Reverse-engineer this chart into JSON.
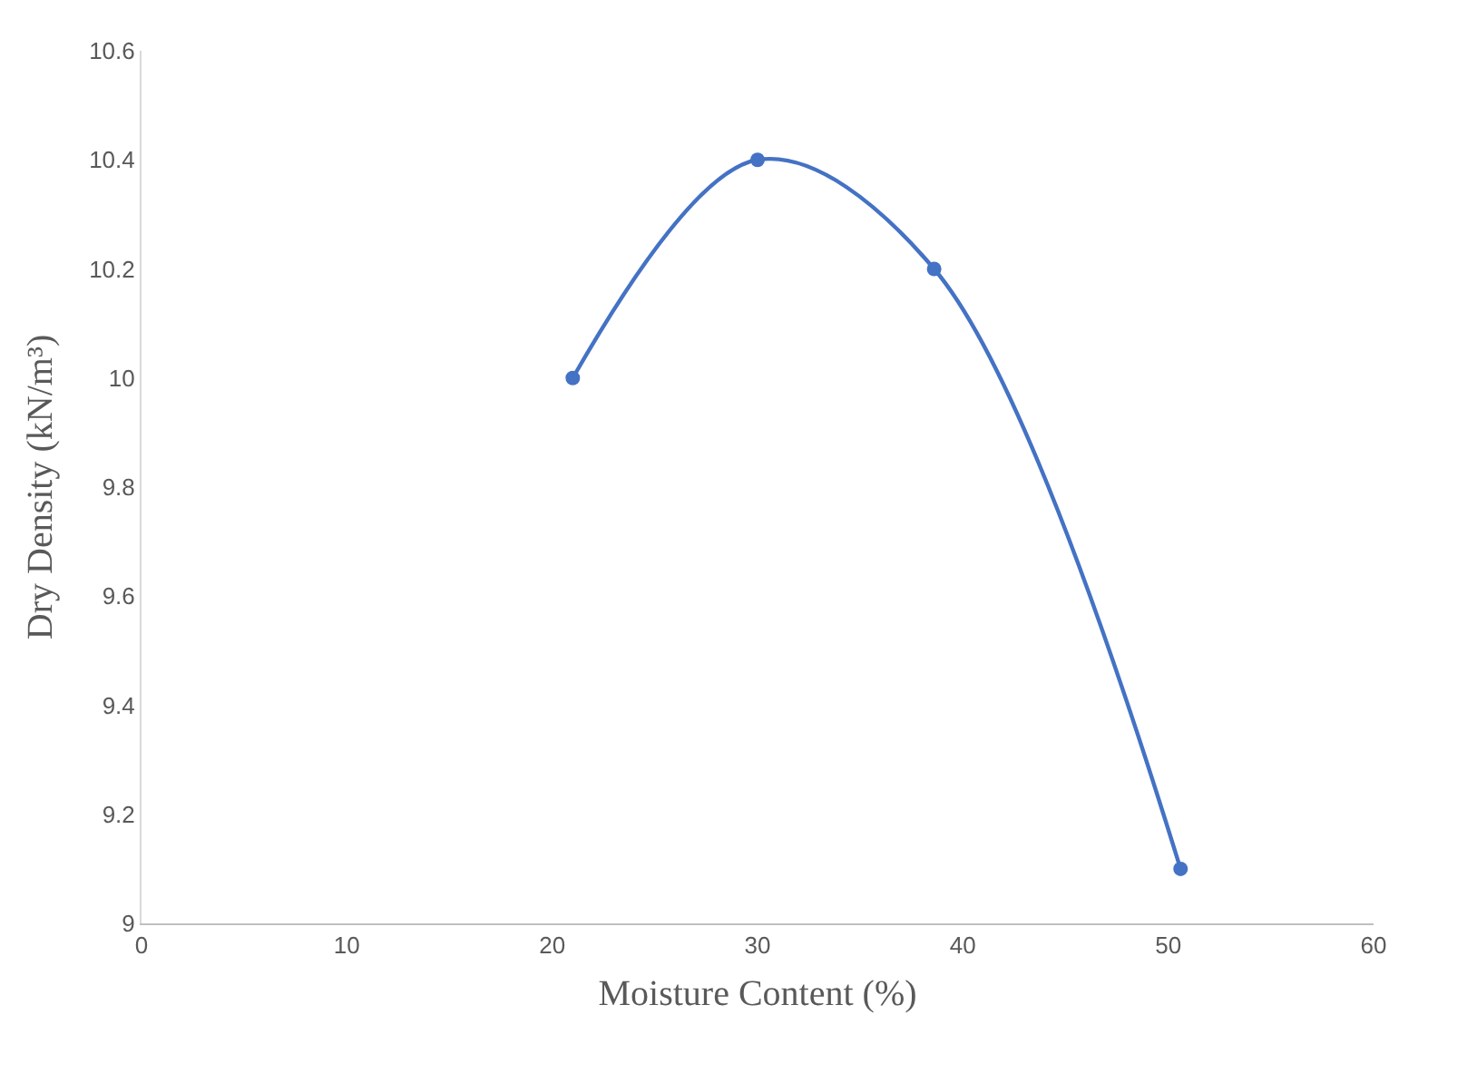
{
  "chart_data": {
    "type": "line",
    "xlabel": "Moisture Content (%)",
    "ylabel": "Dry Density (kN/m³)",
    "x": [
      21,
      30,
      38.6,
      50.6
    ],
    "series": [
      {
        "color": "#4472c4",
        "values": [
          10.0,
          10.4,
          10.2,
          9.1
        ]
      }
    ],
    "xlim": [
      0,
      60
    ],
    "xticks": [
      0,
      10,
      20,
      30,
      40,
      50,
      60
    ],
    "ylim": [
      9,
      10.6
    ],
    "yticks": [
      9,
      9.2,
      9.4,
      9.6,
      9.8,
      10,
      10.2,
      10.4,
      10.6
    ],
    "grid": false,
    "legend": false,
    "marker": "circle",
    "line_style": "solid"
  }
}
